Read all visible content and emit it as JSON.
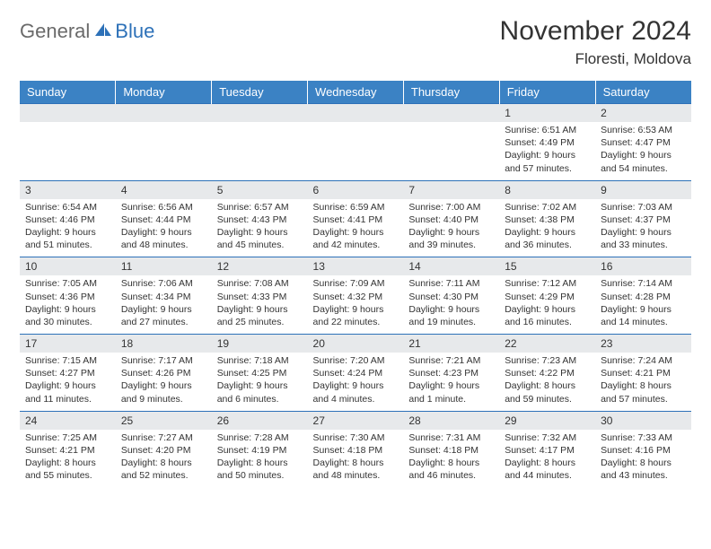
{
  "logo": {
    "text1": "General",
    "text2": "Blue"
  },
  "title": "November 2024",
  "location": "Floresti, Moldova",
  "colors": {
    "header_bg": "#3b82c4",
    "header_text": "#ffffff",
    "daynum_bg": "#e7e9eb",
    "row_border": "#2d71b8",
    "logo_gray": "#6a6a6a",
    "logo_blue": "#2d71b8"
  },
  "weekdays": [
    "Sunday",
    "Monday",
    "Tuesday",
    "Wednesday",
    "Thursday",
    "Friday",
    "Saturday"
  ],
  "weeks": [
    [
      {
        "n": "",
        "lines": []
      },
      {
        "n": "",
        "lines": []
      },
      {
        "n": "",
        "lines": []
      },
      {
        "n": "",
        "lines": []
      },
      {
        "n": "",
        "lines": []
      },
      {
        "n": "1",
        "lines": [
          "Sunrise: 6:51 AM",
          "Sunset: 4:49 PM",
          "Daylight: 9 hours",
          "and 57 minutes."
        ]
      },
      {
        "n": "2",
        "lines": [
          "Sunrise: 6:53 AM",
          "Sunset: 4:47 PM",
          "Daylight: 9 hours",
          "and 54 minutes."
        ]
      }
    ],
    [
      {
        "n": "3",
        "lines": [
          "Sunrise: 6:54 AM",
          "Sunset: 4:46 PM",
          "Daylight: 9 hours",
          "and 51 minutes."
        ]
      },
      {
        "n": "4",
        "lines": [
          "Sunrise: 6:56 AM",
          "Sunset: 4:44 PM",
          "Daylight: 9 hours",
          "and 48 minutes."
        ]
      },
      {
        "n": "5",
        "lines": [
          "Sunrise: 6:57 AM",
          "Sunset: 4:43 PM",
          "Daylight: 9 hours",
          "and 45 minutes."
        ]
      },
      {
        "n": "6",
        "lines": [
          "Sunrise: 6:59 AM",
          "Sunset: 4:41 PM",
          "Daylight: 9 hours",
          "and 42 minutes."
        ]
      },
      {
        "n": "7",
        "lines": [
          "Sunrise: 7:00 AM",
          "Sunset: 4:40 PM",
          "Daylight: 9 hours",
          "and 39 minutes."
        ]
      },
      {
        "n": "8",
        "lines": [
          "Sunrise: 7:02 AM",
          "Sunset: 4:38 PM",
          "Daylight: 9 hours",
          "and 36 minutes."
        ]
      },
      {
        "n": "9",
        "lines": [
          "Sunrise: 7:03 AM",
          "Sunset: 4:37 PM",
          "Daylight: 9 hours",
          "and 33 minutes."
        ]
      }
    ],
    [
      {
        "n": "10",
        "lines": [
          "Sunrise: 7:05 AM",
          "Sunset: 4:36 PM",
          "Daylight: 9 hours",
          "and 30 minutes."
        ]
      },
      {
        "n": "11",
        "lines": [
          "Sunrise: 7:06 AM",
          "Sunset: 4:34 PM",
          "Daylight: 9 hours",
          "and 27 minutes."
        ]
      },
      {
        "n": "12",
        "lines": [
          "Sunrise: 7:08 AM",
          "Sunset: 4:33 PM",
          "Daylight: 9 hours",
          "and 25 minutes."
        ]
      },
      {
        "n": "13",
        "lines": [
          "Sunrise: 7:09 AM",
          "Sunset: 4:32 PM",
          "Daylight: 9 hours",
          "and 22 minutes."
        ]
      },
      {
        "n": "14",
        "lines": [
          "Sunrise: 7:11 AM",
          "Sunset: 4:30 PM",
          "Daylight: 9 hours",
          "and 19 minutes."
        ]
      },
      {
        "n": "15",
        "lines": [
          "Sunrise: 7:12 AM",
          "Sunset: 4:29 PM",
          "Daylight: 9 hours",
          "and 16 minutes."
        ]
      },
      {
        "n": "16",
        "lines": [
          "Sunrise: 7:14 AM",
          "Sunset: 4:28 PM",
          "Daylight: 9 hours",
          "and 14 minutes."
        ]
      }
    ],
    [
      {
        "n": "17",
        "lines": [
          "Sunrise: 7:15 AM",
          "Sunset: 4:27 PM",
          "Daylight: 9 hours",
          "and 11 minutes."
        ]
      },
      {
        "n": "18",
        "lines": [
          "Sunrise: 7:17 AM",
          "Sunset: 4:26 PM",
          "Daylight: 9 hours",
          "and 9 minutes."
        ]
      },
      {
        "n": "19",
        "lines": [
          "Sunrise: 7:18 AM",
          "Sunset: 4:25 PM",
          "Daylight: 9 hours",
          "and 6 minutes."
        ]
      },
      {
        "n": "20",
        "lines": [
          "Sunrise: 7:20 AM",
          "Sunset: 4:24 PM",
          "Daylight: 9 hours",
          "and 4 minutes."
        ]
      },
      {
        "n": "21",
        "lines": [
          "Sunrise: 7:21 AM",
          "Sunset: 4:23 PM",
          "Daylight: 9 hours",
          "and 1 minute."
        ]
      },
      {
        "n": "22",
        "lines": [
          "Sunrise: 7:23 AM",
          "Sunset: 4:22 PM",
          "Daylight: 8 hours",
          "and 59 minutes."
        ]
      },
      {
        "n": "23",
        "lines": [
          "Sunrise: 7:24 AM",
          "Sunset: 4:21 PM",
          "Daylight: 8 hours",
          "and 57 minutes."
        ]
      }
    ],
    [
      {
        "n": "24",
        "lines": [
          "Sunrise: 7:25 AM",
          "Sunset: 4:21 PM",
          "Daylight: 8 hours",
          "and 55 minutes."
        ]
      },
      {
        "n": "25",
        "lines": [
          "Sunrise: 7:27 AM",
          "Sunset: 4:20 PM",
          "Daylight: 8 hours",
          "and 52 minutes."
        ]
      },
      {
        "n": "26",
        "lines": [
          "Sunrise: 7:28 AM",
          "Sunset: 4:19 PM",
          "Daylight: 8 hours",
          "and 50 minutes."
        ]
      },
      {
        "n": "27",
        "lines": [
          "Sunrise: 7:30 AM",
          "Sunset: 4:18 PM",
          "Daylight: 8 hours",
          "and 48 minutes."
        ]
      },
      {
        "n": "28",
        "lines": [
          "Sunrise: 7:31 AM",
          "Sunset: 4:18 PM",
          "Daylight: 8 hours",
          "and 46 minutes."
        ]
      },
      {
        "n": "29",
        "lines": [
          "Sunrise: 7:32 AM",
          "Sunset: 4:17 PM",
          "Daylight: 8 hours",
          "and 44 minutes."
        ]
      },
      {
        "n": "30",
        "lines": [
          "Sunrise: 7:33 AM",
          "Sunset: 4:16 PM",
          "Daylight: 8 hours",
          "and 43 minutes."
        ]
      }
    ]
  ]
}
